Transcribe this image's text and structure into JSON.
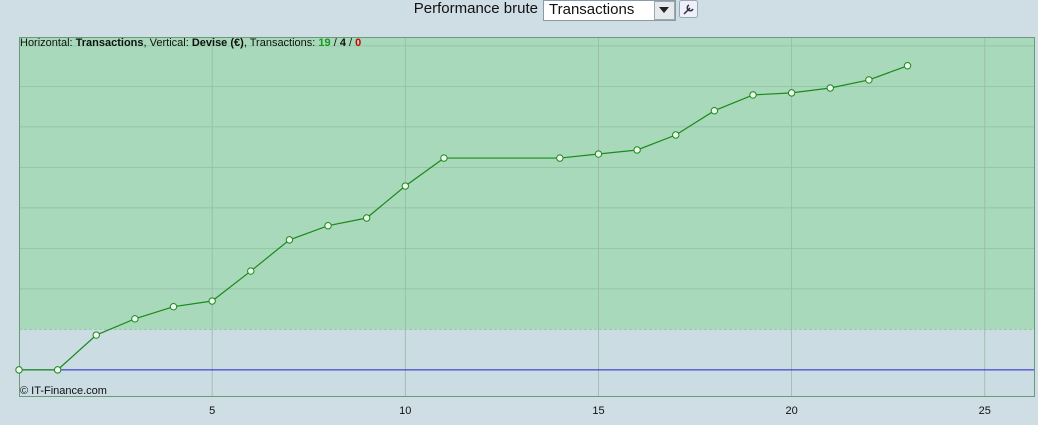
{
  "header": {
    "title": "Performance brute",
    "selector": "Transactions"
  },
  "info": {
    "horizontal_label": "Horizontal:",
    "horizontal": "Transactions",
    "vertical_label": "Vertical:",
    "vertical": "Devise (€)",
    "count_label": "Transactions:",
    "wins": 19,
    "losses": 4,
    "neutral": 0
  },
  "footer": "© IT-Finance.com",
  "chart_data": {
    "type": "line",
    "x": [
      0,
      1,
      2,
      3,
      4,
      5,
      6,
      7,
      8,
      9,
      10,
      11,
      14,
      15,
      16,
      17,
      18,
      19,
      20,
      21,
      22,
      23
    ],
    "series": [
      {
        "color": "#1a8a1a",
        "values": [
          0,
          0,
          0.86,
          1.26,
          1.56,
          1.7,
          2.44,
          3.21,
          3.56,
          3.75,
          4.54,
          5.23,
          5.23,
          5.33,
          5.43,
          5.8,
          6.4,
          6.79,
          6.84,
          6.96,
          7.16,
          7.51
        ]
      }
    ],
    "xlim": [
      0,
      26.3
    ],
    "xticks": [
      5,
      10,
      15,
      20,
      25
    ],
    "ylim": [
      -0.67,
      8.22
    ],
    "yticks": [
      1,
      2,
      3,
      4,
      5,
      6,
      7,
      8
    ],
    "reference_line": 1,
    "zero_line": 0,
    "grid": true
  }
}
